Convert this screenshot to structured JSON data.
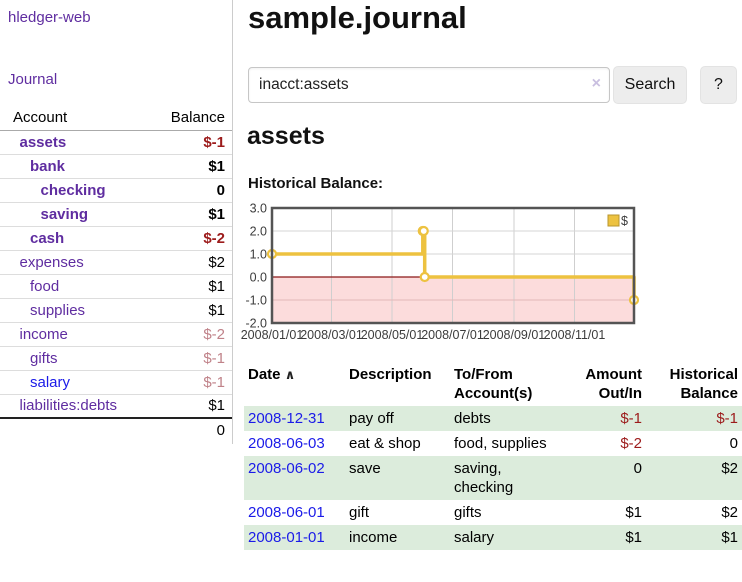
{
  "colors": {
    "link_purple": "#5f2da0",
    "link_blue": "#1b1be8",
    "negative": "#9c1b1b",
    "negative_muted": "#c08289",
    "stripe_green": "#dcecdc",
    "chart_line": "#edc240",
    "chart_negative_region": "#fcdcdc",
    "chart_zero_line": "#8b1717"
  },
  "sidebar": {
    "brand": "hledger-web",
    "nav_journal": "Journal",
    "accounts_header": {
      "account": "Account",
      "balance": "Balance"
    },
    "accounts": [
      {
        "name": "assets",
        "level": 1,
        "bold": true,
        "balance": "$-1",
        "balance_class": "neg b"
      },
      {
        "name": "bank",
        "level": 2,
        "bold": true,
        "balance": "$1",
        "balance_class": "b"
      },
      {
        "name": "checking",
        "level": 3,
        "bold": true,
        "balance": "0",
        "balance_class": "b"
      },
      {
        "name": "saving",
        "level": 3,
        "bold": true,
        "balance": "$1",
        "balance_class": "b"
      },
      {
        "name": "cash",
        "level": 2,
        "bold": true,
        "balance": "$-2",
        "balance_class": "neg b"
      },
      {
        "name": "expenses",
        "level": 1,
        "bold": false,
        "balance": "$2",
        "balance_class": ""
      },
      {
        "name": "food",
        "level": 2,
        "bold": false,
        "balance": "$1",
        "balance_class": ""
      },
      {
        "name": "supplies",
        "level": 2,
        "bold": false,
        "balance": "$1",
        "balance_class": ""
      },
      {
        "name": "income",
        "level": 1,
        "bold": false,
        "balance": "$-2",
        "balance_class": "negmuted"
      },
      {
        "name": "gifts",
        "level": 2,
        "bold": false,
        "balance": "$-1",
        "balance_class": "negmuted"
      },
      {
        "name": "salary",
        "level": 2,
        "bold": false,
        "balance": "$-1",
        "balance_class": "negmuted",
        "link_class": "unvisited"
      },
      {
        "name": "liabilities:debts",
        "level": 1,
        "bold": false,
        "balance": "$1",
        "balance_class": ""
      }
    ],
    "total": "0"
  },
  "main": {
    "title": "sample.journal",
    "search": {
      "value": "inacct:assets",
      "clear_icon": "×",
      "search_button": "Search",
      "help_button": "?"
    },
    "account_heading": "assets",
    "chart_label": "Historical Balance:"
  },
  "chart_data": {
    "type": "line",
    "step": true,
    "title": "Historical Balance:",
    "legend": {
      "label": "$",
      "position": "top-right"
    },
    "series": [
      {
        "name": "$",
        "points": [
          [
            "2008-01-01",
            1
          ],
          [
            "2008-06-01",
            2
          ],
          [
            "2008-06-02",
            2
          ],
          [
            "2008-06-03",
            0
          ],
          [
            "2008-12-31",
            -1
          ]
        ]
      }
    ],
    "xrange": [
      "2008-01-01",
      "2008-12-31"
    ],
    "ylim": [
      -2,
      3
    ],
    "yticks": [
      3,
      2,
      1,
      0,
      -1,
      -2
    ],
    "ytick_labels": [
      "3.0",
      "2.0",
      "1.0",
      "0.0",
      "-1.0",
      "-2.0"
    ],
    "xtick_dates": [
      "2008-01-01",
      "2008-03-01",
      "2008-05-01",
      "2008-07-01",
      "2008-09-01",
      "2008-11-01"
    ],
    "xtick_labels": [
      "2008/01/01",
      "2008/03/01",
      "2008/05/01",
      "2008/07/01",
      "2008/09/01",
      "2008/11/01"
    ],
    "grid": true
  },
  "register": {
    "headers": {
      "date": "Date",
      "sort_icon": "∧",
      "description": "Description",
      "accounts_line1": "To/From",
      "accounts_line2": "Account(s)",
      "amount_line1": "Amount",
      "amount_line2": "Out/In",
      "balance_line1": "Historical",
      "balance_line2": "Balance"
    },
    "rows": [
      {
        "date": "2008-12-31",
        "description": "pay off",
        "accounts": "debts",
        "amount": "$-1",
        "amount_class": "neg",
        "balance": "$-1",
        "balance_class": "neg"
      },
      {
        "date": "2008-06-03",
        "description": "eat & shop",
        "accounts": "food, supplies",
        "amount": "$-2",
        "amount_class": "neg",
        "balance": "0",
        "balance_class": ""
      },
      {
        "date": "2008-06-02",
        "description": "save",
        "accounts": "saving, checking",
        "amount": "0",
        "amount_class": "",
        "balance": "$2",
        "balance_class": ""
      },
      {
        "date": "2008-06-01",
        "description": "gift",
        "accounts": "gifts",
        "amount": "$1",
        "amount_class": "",
        "balance": "$2",
        "balance_class": ""
      },
      {
        "date": "2008-01-01",
        "description": "income",
        "accounts": "salary",
        "amount": "$1",
        "amount_class": "",
        "balance": "$1",
        "balance_class": ""
      }
    ]
  }
}
